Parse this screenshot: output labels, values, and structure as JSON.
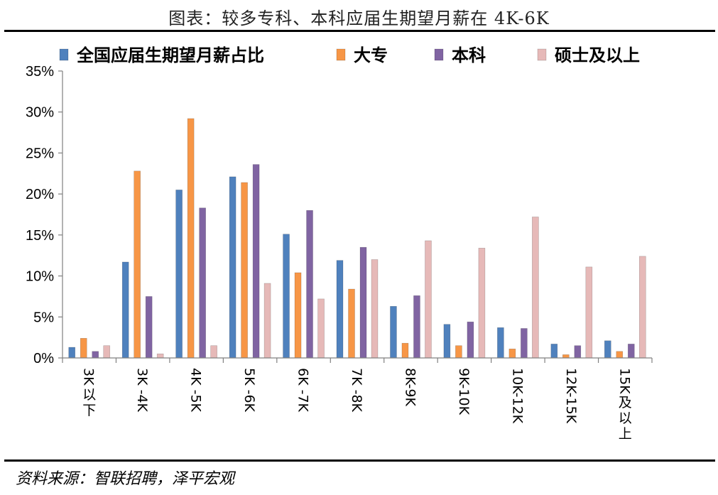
{
  "title": "图表：较多专科、本科应届生期望月薪在 4K-6K",
  "source": "资料来源：智联招聘，泽平宏观",
  "chart_data": {
    "type": "bar",
    "categories": [
      "3K以下",
      "3K -4K",
      "4K -5K",
      "5K -6K",
      "6K -7K",
      "7K -8K",
      "8K-9K",
      "9K-10K",
      "10K-12K",
      "12K-15K",
      "15K及以上"
    ],
    "ylim": [
      0,
      35
    ],
    "yticks": [
      "0%",
      "5%",
      "10%",
      "15%",
      "20%",
      "25%",
      "30%",
      "35%"
    ],
    "grid": false,
    "legend": "top",
    "series": [
      {
        "name": "全国应届生期望月薪占比",
        "color": "#4f81bd",
        "values": [
          1.3,
          11.7,
          20.5,
          22.1,
          15.1,
          11.9,
          6.3,
          4.1,
          3.7,
          1.7,
          2.1
        ]
      },
      {
        "name": "大专",
        "color": "#f79646",
        "values": [
          2.4,
          22.8,
          29.2,
          21.4,
          10.4,
          8.4,
          1.8,
          1.5,
          1.1,
          0.4,
          0.8
        ]
      },
      {
        "name": "本科",
        "color": "#8064a2",
        "values": [
          0.8,
          7.5,
          18.3,
          23.6,
          18.0,
          13.5,
          7.6,
          4.4,
          3.6,
          1.5,
          1.7
        ]
      },
      {
        "name": "硕士及以上",
        "color": "#e6b9b8",
        "values": [
          1.5,
          0.5,
          1.5,
          9.1,
          7.2,
          12.0,
          14.3,
          13.4,
          17.2,
          11.1,
          12.4
        ]
      }
    ]
  }
}
